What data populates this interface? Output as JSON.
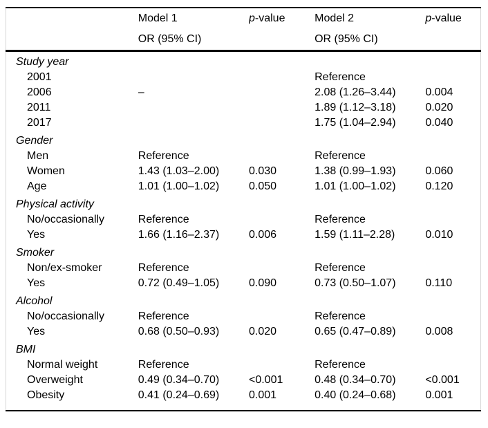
{
  "table": {
    "header": {
      "model1": "Model 1",
      "pvalue1": "p-value",
      "model2": "Model 2",
      "pvalue2": "p-value",
      "or_ci": "OR (95% CI)"
    },
    "sections": [
      {
        "label": "Study year",
        "rows": [
          {
            "label": "2001",
            "m1_or": "",
            "m1_p": "",
            "m2_or": "Reference",
            "m2_p": ""
          },
          {
            "label": "2006",
            "m1_or": "–",
            "m1_p": "",
            "m2_or": "2.08 (1.26–3.44)",
            "m2_p": "0.004"
          },
          {
            "label": "2011",
            "m1_or": "",
            "m1_p": "",
            "m2_or": "1.89 (1.12–3.18)",
            "m2_p": "0.020"
          },
          {
            "label": "2017",
            "m1_or": "",
            "m1_p": "",
            "m2_or": "1.75 (1.04–2.94)",
            "m2_p": "0.040"
          }
        ]
      },
      {
        "label": "Gender",
        "rows": [
          {
            "label": "Men",
            "m1_or": "Reference",
            "m1_p": "",
            "m2_or": "Reference",
            "m2_p": ""
          },
          {
            "label": "Women",
            "m1_or": "1.43 (1.03–2.00)",
            "m1_p": "0.030",
            "m2_or": "1.38 (0.99–1.93)",
            "m2_p": "0.060"
          },
          {
            "label": "Age",
            "m1_or": "1.01 (1.00–1.02)",
            "m1_p": "0.050",
            "m2_or": "1.01 (1.00–1.02)",
            "m2_p": "0.120"
          }
        ]
      },
      {
        "label": "Physical activity",
        "rows": [
          {
            "label": "No/occasionally",
            "m1_or": "Reference",
            "m1_p": "",
            "m2_or": "Reference",
            "m2_p": ""
          },
          {
            "label": "Yes",
            "m1_or": "1.66 (1.16–2.37)",
            "m1_p": "0.006",
            "m2_or": "1.59 (1.11–2.28)",
            "m2_p": "0.010"
          }
        ]
      },
      {
        "label": "Smoker",
        "rows": [
          {
            "label": "Non/ex-smoker",
            "m1_or": "Reference",
            "m1_p": "",
            "m2_or": "Reference",
            "m2_p": ""
          },
          {
            "label": "Yes",
            "m1_or": "0.72 (0.49–1.05)",
            "m1_p": "0.090",
            "m2_or": "0.73 (0.50–1.07)",
            "m2_p": "0.110"
          }
        ]
      },
      {
        "label": "Alcohol",
        "rows": [
          {
            "label": "No/occasionally",
            "m1_or": "Reference",
            "m1_p": "",
            "m2_or": "Reference",
            "m2_p": ""
          },
          {
            "label": "Yes",
            "m1_or": "0.68 (0.50–0.93)",
            "m1_p": "0.020",
            "m2_or": "0.65 (0.47–0.89)",
            "m2_p": "0.008"
          }
        ]
      },
      {
        "label": "BMI",
        "rows": [
          {
            "label": "Normal weight",
            "m1_or": "Reference",
            "m1_p": "",
            "m2_or": "Reference",
            "m2_p": ""
          },
          {
            "label": "Overweight",
            "m1_or": "0.49 (0.34–0.70)",
            "m1_p": "<0.001",
            "m2_or": "0.48 (0.34–0.70)",
            "m2_p": "<0.001"
          },
          {
            "label": "Obesity",
            "m1_or": "0.41 (0.24–0.69)",
            "m1_p": "0.001",
            "m2_or": "0.40 (0.24–0.68)",
            "m2_p": "0.001"
          }
        ]
      }
    ]
  }
}
